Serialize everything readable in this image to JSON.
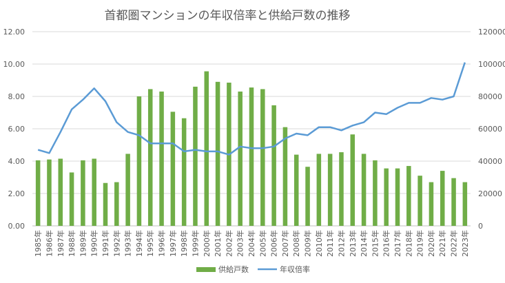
{
  "chart_data": {
    "type": "bar+line",
    "title": "首都圏マンションの年収倍率と供給戸数の推移",
    "categories": [
      "1985年",
      "1986年",
      "1987年",
      "1988年",
      "1989年",
      "1990年",
      "1991年",
      "1992年",
      "1993年",
      "1994年",
      "1995年",
      "1996年",
      "1997年",
      "1998年",
      "1999年",
      "2000年",
      "2001年",
      "2002年",
      "2003年",
      "2004年",
      "2005年",
      "2006年",
      "2007年",
      "2008年",
      "2009年",
      "2010年",
      "2011年",
      "2012年",
      "2013年",
      "2014年",
      "2015年",
      "2016年",
      "2017年",
      "2018年",
      "2019年",
      "2020年",
      "2021年",
      "2022年",
      "2023年"
    ],
    "series": [
      {
        "name": "供給戸数",
        "type": "bar",
        "axis": "right",
        "color": "#70AD47",
        "values": [
          40500,
          41000,
          41500,
          33000,
          40500,
          41500,
          26500,
          27000,
          44500,
          80000,
          84500,
          83000,
          70500,
          66500,
          86000,
          95500,
          89000,
          88500,
          83000,
          85500,
          84500,
          74500,
          61000,
          44000,
          36500,
          44500,
          44500,
          45500,
          56500,
          44500,
          40500,
          35500,
          35500,
          37000,
          31000,
          27000,
          34000,
          29500,
          27000
        ]
      },
      {
        "name": "年収倍率",
        "type": "line",
        "axis": "left",
        "color": "#5B9BD5",
        "values": [
          4.7,
          4.5,
          5.8,
          7.2,
          7.8,
          8.5,
          7.7,
          6.4,
          5.8,
          5.6,
          5.1,
          5.1,
          5.1,
          4.6,
          4.7,
          4.6,
          4.6,
          4.4,
          4.9,
          4.8,
          4.8,
          4.9,
          5.4,
          5.7,
          5.6,
          6.1,
          6.1,
          5.9,
          6.2,
          6.4,
          7.0,
          6.9,
          7.3,
          7.6,
          7.6,
          7.9,
          7.8,
          8.0,
          10.1
        ]
      }
    ],
    "y_left": {
      "min": 0,
      "max": 12,
      "step": 2,
      "tick_labels": [
        "0.00",
        "2.00",
        "4.00",
        "6.00",
        "8.00",
        "10.00",
        "12.00"
      ]
    },
    "y_right": {
      "min": 0,
      "max": 120000,
      "step": 20000,
      "tick_labels": [
        "0",
        "20000",
        "40000",
        "60000",
        "80000",
        "100000",
        "120000"
      ]
    },
    "grid": true,
    "legend": {
      "position": "bottom",
      "items": [
        "供給戸数",
        "年収倍率"
      ]
    }
  }
}
